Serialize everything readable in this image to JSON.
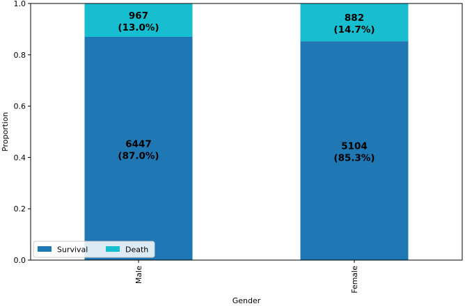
{
  "chart_data": {
    "type": "bar",
    "stacked": true,
    "categories": [
      "Male",
      "Female"
    ],
    "xlabel": "Gender",
    "ylabel": "Proportion",
    "ylim": [
      0,
      1.0
    ],
    "yticks": [
      "0.0",
      "0.2",
      "0.4",
      "0.6",
      "0.8",
      "1.0"
    ],
    "series": [
      {
        "name": "Survival",
        "color": "#1f77b4",
        "values": [
          0.87,
          0.853
        ],
        "labels": [
          {
            "count": "6447",
            "pct": "(87.0%)"
          },
          {
            "count": "5104",
            "pct": "(85.3%)"
          }
        ]
      },
      {
        "name": "Death",
        "color": "#17becf",
        "values": [
          0.13,
          0.147
        ],
        "labels": [
          {
            "count": "967",
            "pct": "(13.0%)"
          },
          {
            "count": "882",
            "pct": "(14.7%)"
          }
        ]
      }
    ],
    "legend": {
      "position": "lower-left",
      "columns": 2
    },
    "grid": false
  }
}
